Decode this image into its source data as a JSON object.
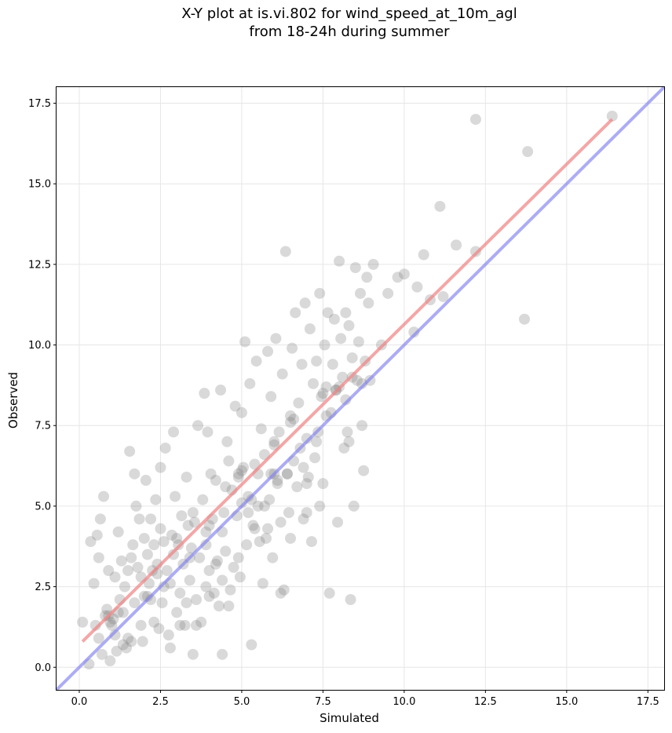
{
  "chart_data": {
    "type": "scatter",
    "title": "X-Y plot at is.vi.802 for wind_speed_at_10m_agl",
    "subtitle": "from 18-24h during summer",
    "xlabel": "Simulated",
    "ylabel": "Observed",
    "xlim": [
      -0.7,
      18.0
    ],
    "ylim": [
      -0.7,
      18.0
    ],
    "xticks": [
      0.0,
      2.5,
      5.0,
      7.5,
      10.0,
      12.5,
      15.0,
      17.5
    ],
    "yticks": [
      0.0,
      2.5,
      5.0,
      7.5,
      10.0,
      12.5,
      15.0,
      17.5
    ],
    "tick_labels": [
      "0.0",
      "2.5",
      "5.0",
      "7.5",
      "10.0",
      "12.5",
      "15.0",
      "17.5"
    ],
    "grid": true,
    "colors": {
      "points": "#808080",
      "fit_line": "#f08080",
      "identity_line": "#8080f0"
    },
    "fit_line": {
      "x": [
        0.1,
        16.4
      ],
      "y": [
        0.8,
        17.0
      ]
    },
    "identity_line": {
      "x": [
        -0.7,
        18.0
      ],
      "y": [
        -0.7,
        18.0
      ]
    },
    "points": [
      [
        0.1,
        1.4
      ],
      [
        0.3,
        0.1
      ],
      [
        0.35,
        3.9
      ],
      [
        0.45,
        2.6
      ],
      [
        0.5,
        1.3
      ],
      [
        0.55,
        4.1
      ],
      [
        0.6,
        3.4
      ],
      [
        0.65,
        4.6
      ],
      [
        0.7,
        0.4
      ],
      [
        0.75,
        5.3
      ],
      [
        0.8,
        1.6
      ],
      [
        0.85,
        1.8
      ],
      [
        0.9,
        3.0
      ],
      [
        0.95,
        0.2
      ],
      [
        1.0,
        1.3
      ],
      [
        1.05,
        1.5
      ],
      [
        1.1,
        2.8
      ],
      [
        1.15,
        0.5
      ],
      [
        1.2,
        4.2
      ],
      [
        1.25,
        2.1
      ],
      [
        1.3,
        3.3
      ],
      [
        1.35,
        1.7
      ],
      [
        1.4,
        2.5
      ],
      [
        1.45,
        0.6
      ],
      [
        1.5,
        0.9
      ],
      [
        1.55,
        6.7
      ],
      [
        1.6,
        3.4
      ],
      [
        1.65,
        3.8
      ],
      [
        1.7,
        6.0
      ],
      [
        1.75,
        5.0
      ],
      [
        1.8,
        3.1
      ],
      [
        1.85,
        4.6
      ],
      [
        1.9,
        2.8
      ],
      [
        1.95,
        0.8
      ],
      [
        2.0,
        2.2
      ],
      [
        2.05,
        5.8
      ],
      [
        2.1,
        3.5
      ],
      [
        2.15,
        2.6
      ],
      [
        2.2,
        4.6
      ],
      [
        2.25,
        3.0
      ],
      [
        2.3,
        3.8
      ],
      [
        2.35,
        5.2
      ],
      [
        2.4,
        3.2
      ],
      [
        2.45,
        1.2
      ],
      [
        2.5,
        6.2
      ],
      [
        2.55,
        2.0
      ],
      [
        2.6,
        3.9
      ],
      [
        2.65,
        6.8
      ],
      [
        2.7,
        3.0
      ],
      [
        2.75,
        1.0
      ],
      [
        2.8,
        2.6
      ],
      [
        2.85,
        4.1
      ],
      [
        2.9,
        7.3
      ],
      [
        2.95,
        5.3
      ],
      [
        3.0,
        1.7
      ],
      [
        3.05,
        3.8
      ],
      [
        3.1,
        2.3
      ],
      [
        3.15,
        4.7
      ],
      [
        3.2,
        3.2
      ],
      [
        3.25,
        1.3
      ],
      [
        3.3,
        5.9
      ],
      [
        3.35,
        4.4
      ],
      [
        3.4,
        2.7
      ],
      [
        3.45,
        3.7
      ],
      [
        3.5,
        0.4
      ],
      [
        3.55,
        4.5
      ],
      [
        3.6,
        2.1
      ],
      [
        3.65,
        7.5
      ],
      [
        3.7,
        3.4
      ],
      [
        3.75,
        1.4
      ],
      [
        3.8,
        5.2
      ],
      [
        3.85,
        8.5
      ],
      [
        3.9,
        4.2
      ],
      [
        3.95,
        7.3
      ],
      [
        4.0,
        3.0
      ],
      [
        4.05,
        6.0
      ],
      [
        4.1,
        4.6
      ],
      [
        4.15,
        2.3
      ],
      [
        4.2,
        5.8
      ],
      [
        4.25,
        3.3
      ],
      [
        4.3,
        1.9
      ],
      [
        4.35,
        8.6
      ],
      [
        4.4,
        2.7
      ],
      [
        4.45,
        4.8
      ],
      [
        4.5,
        3.6
      ],
      [
        4.55,
        7.0
      ],
      [
        4.6,
        6.4
      ],
      [
        4.65,
        2.4
      ],
      [
        4.7,
        5.5
      ],
      [
        4.75,
        3.1
      ],
      [
        4.8,
        8.1
      ],
      [
        4.85,
        4.7
      ],
      [
        4.9,
        6.0
      ],
      [
        4.95,
        2.8
      ],
      [
        5.0,
        7.9
      ],
      [
        5.05,
        6.2
      ],
      [
        5.1,
        10.1
      ],
      [
        5.15,
        3.8
      ],
      [
        5.2,
        5.3
      ],
      [
        5.25,
        8.8
      ],
      [
        5.3,
        0.7
      ],
      [
        5.35,
        4.4
      ],
      [
        5.4,
        6.3
      ],
      [
        5.45,
        9.5
      ],
      [
        5.5,
        5.0
      ],
      [
        5.55,
        3.9
      ],
      [
        5.6,
        7.4
      ],
      [
        5.65,
        2.6
      ],
      [
        5.7,
        6.6
      ],
      [
        5.75,
        4.0
      ],
      [
        5.8,
        9.8
      ],
      [
        5.85,
        5.2
      ],
      [
        5.9,
        8.4
      ],
      [
        5.95,
        3.4
      ],
      [
        6.0,
        6.9
      ],
      [
        6.05,
        10.2
      ],
      [
        6.1,
        5.8
      ],
      [
        6.15,
        7.3
      ],
      [
        6.2,
        4.5
      ],
      [
        6.25,
        9.1
      ],
      [
        6.3,
        2.4
      ],
      [
        6.35,
        12.9
      ],
      [
        6.4,
        6.0
      ],
      [
        6.45,
        4.8
      ],
      [
        6.5,
        7.8
      ],
      [
        6.55,
        9.9
      ],
      [
        6.6,
        6.4
      ],
      [
        6.65,
        11.0
      ],
      [
        6.7,
        5.6
      ],
      [
        6.75,
        8.2
      ],
      [
        6.8,
        6.8
      ],
      [
        6.85,
        9.4
      ],
      [
        6.9,
        4.6
      ],
      [
        6.95,
        11.3
      ],
      [
        7.0,
        7.1
      ],
      [
        7.05,
        5.9
      ],
      [
        7.1,
        10.5
      ],
      [
        7.15,
        3.9
      ],
      [
        7.2,
        8.8
      ],
      [
        7.25,
        6.5
      ],
      [
        7.3,
        9.5
      ],
      [
        7.35,
        7.3
      ],
      [
        7.4,
        11.6
      ],
      [
        7.45,
        8.4
      ],
      [
        7.5,
        5.7
      ],
      [
        7.55,
        10.0
      ],
      [
        7.6,
        8.7
      ],
      [
        7.65,
        11.0
      ],
      [
        7.7,
        2.3
      ],
      [
        7.75,
        7.9
      ],
      [
        7.8,
        9.4
      ],
      [
        7.85,
        10.8
      ],
      [
        7.9,
        8.6
      ],
      [
        7.95,
        4.5
      ],
      [
        8.0,
        12.6
      ],
      [
        8.05,
        10.2
      ],
      [
        8.1,
        9.0
      ],
      [
        8.15,
        6.8
      ],
      [
        8.2,
        11.0
      ],
      [
        8.25,
        7.3
      ],
      [
        8.3,
        10.6
      ],
      [
        8.35,
        2.1
      ],
      [
        8.4,
        9.6
      ],
      [
        8.45,
        5.0
      ],
      [
        8.5,
        12.4
      ],
      [
        8.55,
        8.9
      ],
      [
        8.6,
        10.1
      ],
      [
        8.65,
        11.6
      ],
      [
        8.7,
        7.5
      ],
      [
        8.75,
        6.1
      ],
      [
        8.8,
        9.5
      ],
      [
        8.85,
        12.1
      ],
      [
        8.9,
        11.3
      ],
      [
        8.95,
        8.9
      ],
      [
        9.05,
        12.5
      ],
      [
        9.3,
        10.0
      ],
      [
        9.5,
        11.6
      ],
      [
        9.8,
        12.1
      ],
      [
        10.0,
        12.2
      ],
      [
        10.3,
        10.4
      ],
      [
        10.4,
        11.8
      ],
      [
        10.6,
        12.8
      ],
      [
        10.8,
        11.4
      ],
      [
        11.1,
        14.3
      ],
      [
        11.2,
        11.5
      ],
      [
        11.6,
        13.1
      ],
      [
        12.2,
        12.9
      ],
      [
        12.2,
        17.0
      ],
      [
        13.7,
        10.8
      ],
      [
        13.8,
        16.0
      ],
      [
        16.4,
        17.1
      ],
      [
        0.9,
        1.6
      ],
      [
        1.1,
        1.0
      ],
      [
        1.6,
        0.8
      ],
      [
        2.1,
        2.2
      ],
      [
        2.4,
        2.9
      ],
      [
        2.9,
        3.5
      ],
      [
        3.3,
        2.0
      ],
      [
        3.9,
        2.5
      ],
      [
        4.4,
        4.2
      ],
      [
        4.9,
        5.9
      ],
      [
        5.0,
        5.1
      ],
      [
        5.4,
        4.3
      ],
      [
        5.9,
        6.0
      ],
      [
        6.0,
        6.0
      ],
      [
        6.2,
        2.3
      ],
      [
        6.6,
        7.7
      ],
      [
        7.0,
        4.8
      ],
      [
        7.4,
        5.0
      ],
      [
        7.9,
        8.6
      ],
      [
        8.3,
        7.0
      ],
      [
        8.7,
        8.8
      ],
      [
        1.2,
        1.7
      ],
      [
        1.7,
        2.0
      ],
      [
        2.2,
        2.1
      ],
      [
        2.6,
        2.5
      ],
      [
        3.1,
        1.3
      ],
      [
        3.4,
        3.4
      ],
      [
        3.9,
        3.8
      ],
      [
        4.2,
        3.2
      ],
      [
        4.6,
        1.9
      ],
      [
        4.9,
        3.4
      ],
      [
        5.2,
        4.8
      ],
      [
        5.7,
        5.0
      ],
      [
        6.1,
        5.7
      ],
      [
        6.5,
        4.0
      ],
      [
        7.0,
        5.7
      ],
      [
        7.6,
        7.8
      ],
      [
        8.4,
        9.0
      ],
      [
        0.6,
        0.9
      ],
      [
        0.95,
        1.4
      ],
      [
        1.35,
        0.7
      ],
      [
        1.9,
        1.3
      ],
      [
        2.3,
        1.4
      ],
      [
        2.8,
        0.6
      ],
      [
        3.6,
        1.3
      ],
      [
        4.0,
        2.2
      ],
      [
        4.4,
        0.4
      ],
      [
        5.3,
        5.2
      ],
      [
        5.8,
        4.3
      ],
      [
        6.4,
        6.0
      ],
      [
        6.9,
        6.2
      ],
      [
        7.3,
        7.0
      ],
      [
        8.2,
        8.3
      ],
      [
        1.5,
        3.0
      ],
      [
        2.0,
        4.0
      ],
      [
        2.5,
        4.3
      ],
      [
        3.0,
        4.0
      ],
      [
        3.5,
        4.8
      ],
      [
        4.0,
        4.4
      ],
      [
        4.5,
        5.6
      ],
      [
        5.0,
        6.1
      ],
      [
        5.5,
        6.0
      ],
      [
        6.0,
        7.0
      ],
      [
        6.5,
        7.6
      ],
      [
        7.5,
        8.5
      ],
      [
        8.0,
        8.7
      ]
    ]
  }
}
